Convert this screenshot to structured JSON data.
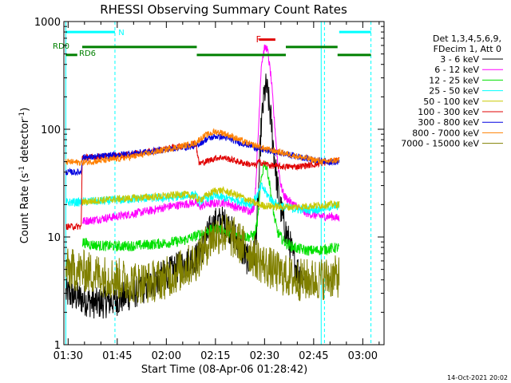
{
  "chart_data": {
    "type": "line",
    "title": "RHESSI Observing Summary Count Rates",
    "xlabel": "Start Time (08-Apr-06 01:28:42)",
    "ylabel": "Count Rate (s",
    "ylabel_sup": "-1",
    "ylabel_tail": " detector",
    "ylabel_sup2": "-1",
    "ylabel_close": ")",
    "footer": "14-Oct-2021 20:02",
    "y_scale": "log",
    "ylim": [
      1,
      1000
    ],
    "xlim": [
      "01:28:42",
      "03:06:30"
    ],
    "x_ticks": [
      {
        "t": "01:30",
        "m": 90
      },
      {
        "t": "01:45",
        "m": 105
      },
      {
        "t": "02:00",
        "m": 120
      },
      {
        "t": "02:15",
        "m": 135
      },
      {
        "t": "02:30",
        "m": 150
      },
      {
        "t": "02:45",
        "m": 165
      },
      {
        "t": "03:00",
        "m": 180
      }
    ],
    "y_ticks": [
      {
        "t": "1",
        "v": 1
      },
      {
        "t": "10",
        "v": 10
      },
      {
        "t": "100",
        "v": 100
      },
      {
        "t": "1000",
        "v": 1000
      }
    ],
    "legend_header": [
      "Det 1,3,4,5,6,9,",
      "FDecim 1, Att 0"
    ],
    "legend_position": "right",
    "series": [
      {
        "name": "3 - 6 keV",
        "color": "#000000",
        "noise": 0.15,
        "points": [
          [
            89.3,
            3
          ],
          [
            95,
            2.6
          ],
          [
            99,
            2.4
          ],
          [
            105,
            2.6
          ],
          [
            110,
            3
          ],
          [
            115,
            3.6
          ],
          [
            120,
            4.5
          ],
          [
            125,
            5.5
          ],
          [
            129.5,
            6.5
          ],
          [
            131,
            8
          ],
          [
            133,
            11
          ],
          [
            135,
            13.5
          ],
          [
            137,
            14
          ],
          [
            139,
            12.5
          ],
          [
            141,
            10
          ],
          [
            143,
            7.5
          ],
          [
            145,
            6
          ],
          [
            147,
            7
          ],
          [
            148,
            20
          ],
          [
            149,
            110
          ],
          [
            150,
            220
          ],
          [
            150.5,
            245
          ],
          [
            151,
            210
          ],
          [
            152,
            120
          ],
          [
            153,
            55
          ],
          [
            154,
            28
          ],
          [
            155,
            18
          ],
          [
            156,
            13
          ],
          [
            157,
            10
          ],
          [
            158,
            8
          ],
          [
            159,
            6
          ],
          [
            160,
            5
          ],
          [
            161,
            4.5
          ],
          [
            162,
            4
          ]
        ]
      },
      {
        "name": "6 - 12 keV",
        "color": "#ff00ff",
        "noise": 0.04,
        "points": [
          [
            94.3,
            14
          ],
          [
            97,
            14.3
          ],
          [
            100,
            14.8
          ],
          [
            105,
            15.5
          ],
          [
            110,
            16.5
          ],
          [
            115,
            17.5
          ],
          [
            120,
            19
          ],
          [
            125,
            20
          ],
          [
            129,
            21
          ],
          [
            130,
            19
          ],
          [
            132,
            20
          ],
          [
            135,
            20.5
          ],
          [
            137,
            21
          ],
          [
            139,
            20.5
          ],
          [
            141,
            19
          ],
          [
            144,
            18
          ],
          [
            146,
            17.5
          ],
          [
            147,
            20
          ],
          [
            148,
            80
          ],
          [
            149,
            400
          ],
          [
            150,
            560
          ],
          [
            150.5,
            580
          ],
          [
            151,
            520
          ],
          [
            152,
            300
          ],
          [
            153,
            120
          ],
          [
            154,
            50
          ],
          [
            155,
            30
          ],
          [
            156,
            24
          ],
          [
            158,
            21
          ],
          [
            160,
            19
          ],
          [
            162,
            17
          ],
          [
            165,
            16
          ],
          [
            168,
            15.5
          ],
          [
            171,
            15.5
          ],
          [
            172,
            15
          ],
          [
            172.8,
            15
          ]
        ]
      },
      {
        "name": "12 - 25 keV",
        "color": "#00e000",
        "noise": 0.05,
        "points": [
          [
            94.3,
            9
          ],
          [
            97,
            8.5
          ],
          [
            100,
            8.3
          ],
          [
            105,
            8.2
          ],
          [
            110,
            8.3
          ],
          [
            115,
            8.5
          ],
          [
            120,
            8.8
          ],
          [
            125,
            9.2
          ],
          [
            130,
            10.5
          ],
          [
            133,
            11.5
          ],
          [
            136,
            12
          ],
          [
            139,
            11
          ],
          [
            142,
            10.5
          ],
          [
            145,
            10
          ],
          [
            147,
            10.5
          ],
          [
            148,
            15
          ],
          [
            149,
            35
          ],
          [
            150,
            50
          ],
          [
            151,
            40
          ],
          [
            152,
            25
          ],
          [
            153,
            15
          ],
          [
            154,
            11
          ],
          [
            156,
            9
          ],
          [
            158,
            8.3
          ],
          [
            160,
            7.8
          ],
          [
            163,
            7.5
          ],
          [
            166,
            7.5
          ],
          [
            170,
            7.8
          ],
          [
            172.8,
            8
          ]
        ]
      },
      {
        "name": "25 - 50 keV",
        "color": "#00ffff",
        "noise": 0.04,
        "points": [
          [
            89.3,
            21
          ],
          [
            93,
            21
          ],
          [
            97,
            21.5
          ],
          [
            100,
            21.5
          ],
          [
            105,
            22
          ],
          [
            110,
            22.5
          ],
          [
            115,
            23
          ],
          [
            120,
            23
          ],
          [
            125,
            24
          ],
          [
            129,
            24.5
          ],
          [
            130,
            21
          ],
          [
            132,
            23
          ],
          [
            135,
            24
          ],
          [
            138,
            23
          ],
          [
            141,
            22
          ],
          [
            144,
            21
          ],
          [
            146,
            20
          ],
          [
            148,
            25
          ],
          [
            149,
            30
          ],
          [
            150,
            27
          ],
          [
            152,
            22
          ],
          [
            154,
            20
          ],
          [
            156,
            19
          ],
          [
            160,
            18
          ],
          [
            163,
            18
          ],
          [
            166,
            18
          ],
          [
            170,
            19
          ],
          [
            172.8,
            19.5
          ]
        ]
      },
      {
        "name": "50 - 100 keV",
        "color": "#c8c800",
        "noise": 0.035,
        "points": [
          [
            94.3,
            21
          ],
          [
            97,
            21.5
          ],
          [
            100,
            22
          ],
          [
            105,
            22.5
          ],
          [
            110,
            23
          ],
          [
            115,
            23.5
          ],
          [
            120,
            24
          ],
          [
            125,
            25
          ],
          [
            128,
            24
          ],
          [
            130,
            22
          ],
          [
            132,
            24
          ],
          [
            135,
            27
          ],
          [
            137,
            27
          ],
          [
            140,
            25.5
          ],
          [
            143,
            23.5
          ],
          [
            145,
            22
          ],
          [
            148,
            20
          ],
          [
            150,
            19.5
          ],
          [
            155,
            19
          ],
          [
            160,
            19
          ],
          [
            165,
            19.5
          ],
          [
            170,
            20
          ],
          [
            172.8,
            20
          ]
        ]
      },
      {
        "name": "100 - 300 keV",
        "color": "#e00000",
        "noise": 0.03,
        "points": [
          [
            89.3,
            12.5
          ],
          [
            94,
            12.5
          ],
          [
            94.3,
            55
          ],
          [
            97,
            55
          ],
          [
            100,
            56
          ],
          [
            103,
            56
          ],
          [
            105,
            57
          ],
          [
            110,
            59
          ],
          [
            115,
            62
          ],
          [
            120,
            66
          ],
          [
            125,
            70
          ],
          [
            129,
            74
          ],
          [
            130,
            48
          ],
          [
            132,
            50
          ],
          [
            135,
            54
          ],
          [
            137,
            55
          ],
          [
            140,
            52
          ],
          [
            143,
            49
          ],
          [
            146,
            47
          ],
          [
            147.5,
            46
          ],
          [
            148,
            50
          ],
          [
            150,
            48
          ],
          [
            152,
            46
          ],
          [
            155,
            45
          ],
          [
            160,
            45
          ],
          [
            165,
            47
          ],
          [
            170,
            50
          ],
          [
            172.8,
            52
          ]
        ]
      },
      {
        "name": "300 - 800 keV",
        "color": "#0000e0",
        "noise": 0.03,
        "points": [
          [
            89.3,
            40
          ],
          [
            94,
            40
          ],
          [
            94.3,
            55
          ],
          [
            97,
            55
          ],
          [
            100,
            56
          ],
          [
            105,
            58
          ],
          [
            110,
            60
          ],
          [
            115,
            62
          ],
          [
            120,
            65
          ],
          [
            125,
            68
          ],
          [
            129,
            70
          ],
          [
            130,
            73
          ],
          [
            132,
            80
          ],
          [
            135,
            86
          ],
          [
            137,
            85
          ],
          [
            140,
            80
          ],
          [
            143,
            74
          ],
          [
            146,
            70
          ],
          [
            148,
            66
          ],
          [
            150,
            64
          ],
          [
            155,
            60
          ],
          [
            160,
            56
          ],
          [
            165,
            52
          ],
          [
            170,
            50
          ],
          [
            172.8,
            49
          ]
        ]
      },
      {
        "name": "800 - 7000 keV",
        "color": "#ff8000",
        "noise": 0.03,
        "points": [
          [
            89.3,
            50
          ],
          [
            94,
            49
          ],
          [
            97,
            50
          ],
          [
            100,
            51
          ],
          [
            105,
            53
          ],
          [
            110,
            56
          ],
          [
            115,
            60
          ],
          [
            120,
            65
          ],
          [
            125,
            70
          ],
          [
            129,
            75
          ],
          [
            130,
            80
          ],
          [
            132,
            88
          ],
          [
            135,
            95
          ],
          [
            137,
            93
          ],
          [
            140,
            86
          ],
          [
            143,
            78
          ],
          [
            146,
            72
          ],
          [
            148,
            70
          ],
          [
            150,
            66
          ],
          [
            155,
            61
          ],
          [
            160,
            56
          ],
          [
            165,
            52
          ],
          [
            168,
            50
          ],
          [
            172.8,
            52
          ]
        ]
      },
      {
        "name": "7000 - 15000 keV",
        "color": "#808000",
        "noise": 0.2,
        "points": [
          [
            89.3,
            5
          ],
          [
            95,
            4.8
          ],
          [
            100,
            4.4
          ],
          [
            105,
            4.1
          ],
          [
            110,
            3.8
          ],
          [
            115,
            3.8
          ],
          [
            120,
            4.2
          ],
          [
            125,
            5
          ],
          [
            129,
            6
          ],
          [
            131,
            7.5
          ],
          [
            133,
            9
          ],
          [
            135,
            10.5
          ],
          [
            137,
            11
          ],
          [
            139,
            10.5
          ],
          [
            141,
            9.5
          ],
          [
            143,
            8.5
          ],
          [
            145,
            7.5
          ],
          [
            147,
            6.5
          ],
          [
            150,
            5.5
          ],
          [
            155,
            4.5
          ],
          [
            160,
            4
          ],
          [
            165,
            4
          ],
          [
            170,
            4.2
          ],
          [
            172.8,
            4.3
          ]
        ]
      }
    ],
    "annotations": [
      {
        "label": "N",
        "color": "#00ffff",
        "segments": [
          [
            89.3,
            104.3
          ],
          [
            172.8,
            182.5
          ]
        ],
        "level": 800
      },
      {
        "label": "RD0",
        "color": "#008000",
        "segments": [
          [
            94.3,
            129.3
          ],
          [
            156.5,
            172.3
          ]
        ],
        "level": 580
      },
      {
        "label": "RD6",
        "color": "#008000",
        "segments": [
          [
            89.3,
            92.8
          ],
          [
            129.3,
            156.5
          ],
          [
            172.3,
            182.5
          ]
        ],
        "level": 490
      },
      {
        "label": "F",
        "color": "#e00000",
        "segments": [
          [
            148.3,
            153.3
          ]
        ],
        "level": 680
      }
    ],
    "vlines": [
      {
        "color": "#00ffff",
        "style": "solid",
        "m": 89.3
      },
      {
        "color": "#00ffff",
        "style": "dashed",
        "m": 104.3
      },
      {
        "color": "#00ffff",
        "style": "solid",
        "m": 167.3
      },
      {
        "color": "#00ffff",
        "style": "dashed",
        "m": 168.3
      },
      {
        "color": "#00ffff",
        "style": "dashed",
        "m": 182.5
      }
    ]
  }
}
